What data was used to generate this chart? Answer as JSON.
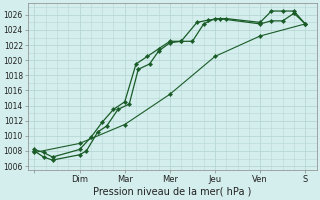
{
  "background_color": "#d4eeed",
  "grid_color": "#b8d8d5",
  "line_color": "#1a5c28",
  "marker_color": "#1a5c28",
  "x_tick_labels": [
    "",
    "Dim",
    "Mar",
    "Mer",
    "Jeu",
    "Ven",
    "S"
  ],
  "x_tick_positions": [
    0,
    2,
    4,
    6,
    8,
    10,
    12
  ],
  "xlim": [
    -0.3,
    12.5
  ],
  "ylim": [
    1005.5,
    1027.5
  ],
  "yticks": [
    1006,
    1008,
    1010,
    1012,
    1014,
    1016,
    1018,
    1020,
    1022,
    1024,
    1026
  ],
  "xlabel": "Pression niveau de la mer( hPa )",
  "line1_x": [
    0.0,
    0.4,
    0.8,
    2.0,
    2.3,
    2.8,
    3.2,
    3.7,
    4.2,
    4.6,
    5.1,
    5.5,
    6.0,
    6.5,
    7.0,
    7.5,
    8.0,
    8.5,
    10.0,
    10.5,
    11.0,
    11.5,
    12.0
  ],
  "line1_y": [
    1008.0,
    1007.2,
    1006.8,
    1007.5,
    1008.0,
    1010.5,
    1011.3,
    1013.5,
    1014.2,
    1018.8,
    1019.5,
    1021.2,
    1022.3,
    1022.5,
    1022.5,
    1024.8,
    1025.5,
    1025.5,
    1025.0,
    1026.5,
    1026.5,
    1026.5,
    1024.8
  ],
  "line2_x": [
    0.0,
    0.4,
    0.8,
    2.0,
    2.5,
    3.0,
    3.5,
    4.0,
    4.5,
    5.0,
    5.5,
    6.0,
    6.5,
    7.2,
    7.7,
    8.2,
    10.0,
    10.5,
    11.0,
    11.5,
    12.0
  ],
  "line2_y": [
    1008.2,
    1007.8,
    1007.2,
    1008.2,
    1009.8,
    1011.8,
    1013.5,
    1014.5,
    1019.5,
    1020.5,
    1021.5,
    1022.5,
    1022.5,
    1025.0,
    1025.3,
    1025.5,
    1024.8,
    1025.2,
    1025.2,
    1026.2,
    1024.8
  ],
  "line3_x": [
    0.0,
    2.0,
    4.0,
    6.0,
    8.0,
    10.0,
    12.0
  ],
  "line3_y": [
    1007.8,
    1009.0,
    1011.5,
    1015.5,
    1020.5,
    1023.2,
    1024.8
  ]
}
